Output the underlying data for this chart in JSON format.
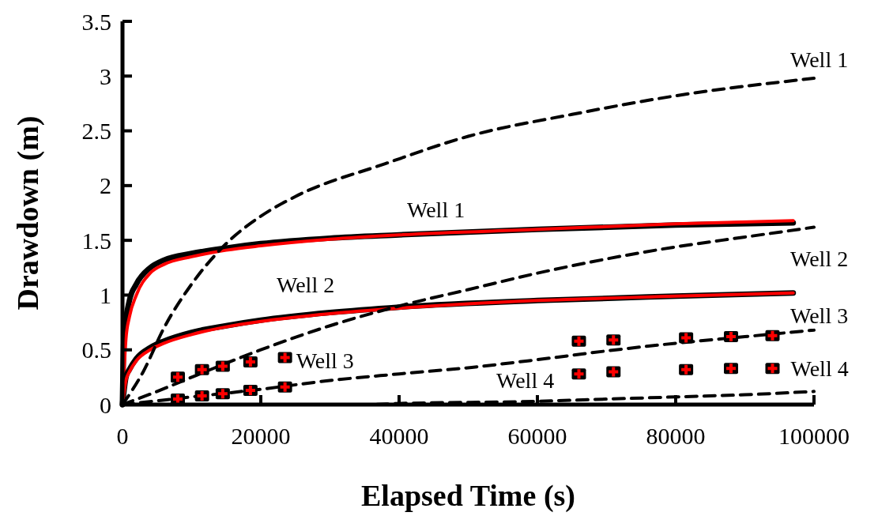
{
  "chart_data": {
    "type": "line",
    "xlabel": "Elapsed Time (s)",
    "ylabel": "Drawdown (m)",
    "xlim": [
      0,
      100000
    ],
    "xticks": [
      0,
      20000,
      40000,
      60000,
      80000,
      100000
    ],
    "ylim": [
      0,
      3.5
    ],
    "yticks": [
      0,
      0.5,
      1,
      1.5,
      2,
      2.5,
      3,
      3.5
    ],
    "grid": false,
    "legend": false,
    "series": [
      {
        "name": "Well 1",
        "line_style": "solid",
        "color": "#000000",
        "x": [
          0,
          200,
          1000,
          2000,
          4000,
          6000,
          10000,
          15000,
          20000,
          30000,
          40000,
          60000,
          80000,
          97000
        ],
        "values": [
          0,
          0.6,
          0.95,
          1.1,
          1.25,
          1.32,
          1.38,
          1.43,
          1.47,
          1.52,
          1.55,
          1.6,
          1.64,
          1.66
        ]
      },
      {
        "line_style": "solid",
        "color": "#ff0000",
        "x": [
          0,
          500,
          1000,
          2000,
          4000,
          6000,
          10000,
          15000,
          20000,
          30000,
          40000,
          60000,
          80000,
          97000
        ],
        "values": [
          0,
          0.6,
          0.8,
          1.0,
          1.2,
          1.28,
          1.35,
          1.41,
          1.45,
          1.51,
          1.55,
          1.6,
          1.65,
          1.68
        ]
      },
      {
        "name": "Well 2",
        "line_style": "solid",
        "color": "#000000",
        "x": [
          0,
          500,
          1000,
          2000,
          4000,
          6000,
          10000,
          15000,
          20000,
          30000,
          40000,
          60000,
          80000,
          97000
        ],
        "values": [
          0,
          0.25,
          0.32,
          0.42,
          0.52,
          0.58,
          0.66,
          0.72,
          0.77,
          0.84,
          0.89,
          0.95,
          0.99,
          1.02
        ]
      },
      {
        "line_style": "solid",
        "color": "#ff0000",
        "x": [
          0,
          500,
          1000,
          2000,
          4000,
          6000,
          10000,
          15000,
          20000,
          30000,
          40000,
          60000,
          80000,
          97000
        ],
        "values": [
          0,
          0.22,
          0.3,
          0.4,
          0.5,
          0.56,
          0.64,
          0.71,
          0.76,
          0.83,
          0.88,
          0.95,
          0.99,
          1.02
        ]
      },
      {
        "name": "Well 1",
        "line_style": "dashed",
        "color": "#000000",
        "x": [
          0,
          3000,
          6000,
          10000,
          15000,
          20000,
          25000,
          38000,
          50000,
          65000,
          80000,
          100000
        ],
        "values": [
          0,
          0.3,
          0.7,
          1.1,
          1.47,
          1.72,
          1.9,
          2.2,
          2.45,
          2.65,
          2.82,
          2.98
        ]
      },
      {
        "name": "Well 2",
        "line_style": "dashed",
        "color": "#000000",
        "x": [
          0,
          5000,
          10000,
          20000,
          30000,
          40000,
          50000,
          60000,
          70000,
          80000,
          90000,
          100000
        ],
        "values": [
          0,
          0.12,
          0.25,
          0.5,
          0.72,
          0.9,
          1.05,
          1.2,
          1.33,
          1.44,
          1.53,
          1.62
        ]
      },
      {
        "name": "Well 3",
        "line_style": "dashed",
        "color": "#000000",
        "x": [
          0,
          10000,
          20000,
          30000,
          40000,
          50500,
          60000,
          70000,
          80000,
          90000,
          100000
        ],
        "values": [
          0,
          0.07,
          0.14,
          0.22,
          0.28,
          0.34,
          0.41,
          0.49,
          0.56,
          0.62,
          0.68
        ]
      },
      {
        "name": "Well 4",
        "line_style": "dashed",
        "color": "#000000",
        "x": [
          0,
          20000,
          35000,
          40000,
          60000,
          70000,
          80000,
          90000,
          100000
        ],
        "values": [
          0,
          0,
          0,
          0.01,
          0.03,
          0.05,
          0.07,
          0.09,
          0.12
        ]
      },
      {
        "name": "Well 3",
        "type": "scatter",
        "marker": "cross",
        "color": "#ff0000",
        "x": [
          8000,
          11500,
          14500,
          18500,
          23500,
          66000,
          71000,
          81500,
          88000,
          94000
        ],
        "values": [
          0.25,
          0.32,
          0.35,
          0.39,
          0.43,
          0.58,
          0.59,
          0.61,
          0.62,
          0.63
        ]
      },
      {
        "name": "Well 4",
        "type": "scatter",
        "marker": "cross",
        "color": "#ff0000",
        "x": [
          8000,
          11500,
          14500,
          18500,
          23500,
          66000,
          71000,
          81500,
          88000,
          94000
        ],
        "values": [
          0.05,
          0.08,
          0.1,
          0.13,
          0.16,
          0.28,
          0.3,
          0.32,
          0.33,
          0.33
        ]
      }
    ]
  }
}
